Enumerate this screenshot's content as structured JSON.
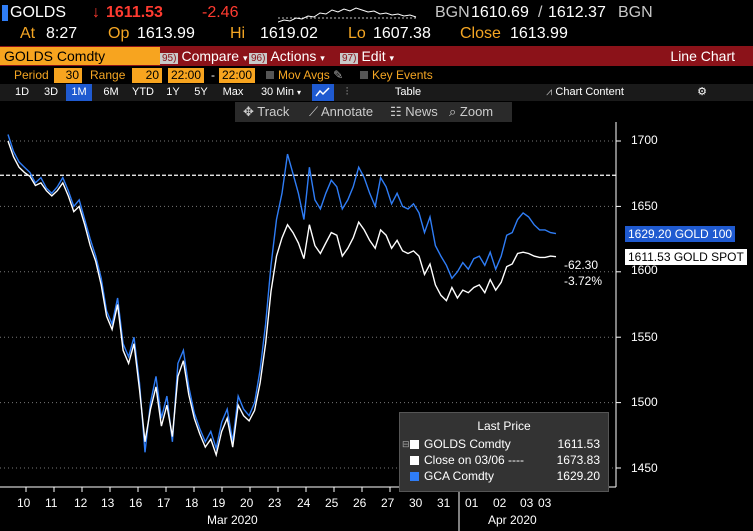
{
  "header": {
    "ticker": "GOLDS",
    "arrow": "↓",
    "last": "1611.53",
    "change": "-2.46",
    "source": "BGN",
    "bid": "1610.69",
    "slash": "/",
    "ask": "1612.37",
    "source2": "BGN",
    "at_label": "At",
    "time": "8:27",
    "op_label": "Op",
    "open": "1613.99",
    "hi_label": "Hi",
    "high": "1619.02",
    "lo_label": "Lo",
    "low": "1607.38",
    "close_label": "Close",
    "close": "1613.99"
  },
  "toolbar": {
    "security": "GOLDS Comdty",
    "compare_num": "95)",
    "compare": "Compare",
    "actions_num": "96)",
    "actions": "Actions",
    "edit_num": "97)",
    "edit": "Edit",
    "caret": "▾",
    "chart_type": "Line Chart"
  },
  "settings": {
    "period_label": "Period",
    "period_value": "30",
    "range_label": "Range",
    "range_value": "20",
    "start_time": "22:00",
    "dash": "-",
    "end_time": "22:00",
    "mov_avgs": "Mov Avgs",
    "key_events": "Key Events"
  },
  "range_buttons": [
    "1D",
    "3D",
    "1M",
    "6M",
    "YTD",
    "1Y",
    "5Y",
    "Max"
  ],
  "active_range": "1M",
  "interval": "30 Min",
  "interval_caret": "▾",
  "table_label": "Table",
  "chart_content": "Chart Content",
  "tools": {
    "track": "Track",
    "annotate": "Annotate",
    "news": "News",
    "zoom": "Zoom"
  },
  "colors": {
    "accent_orange": "#f7a41f",
    "toolbar_red": "#8b1219",
    "series_blue": "#2f7df6",
    "series_white": "#ffffff",
    "negative_red": "#ff3b30",
    "active_button": "#1f5ad0"
  },
  "price_tags": {
    "gca": "1629.20 GOLD 100",
    "golds": "1611.53 GOLD SPOT",
    "change_abs": "-62.30",
    "change_pct": "-3.72%"
  },
  "legend": {
    "title": "Last Price",
    "rows": [
      {
        "label": "GOLDS Comdty",
        "value": "1611.53",
        "color": "#ffffff"
      },
      {
        "label": "Close on 03/06 ---- ",
        "value": "1673.83",
        "color": "#ffffff"
      },
      {
        "label": "GCA Comdty",
        "value": "1629.20",
        "color": "#2f7df6"
      }
    ]
  },
  "chart_data": {
    "type": "line",
    "ylim": [
      1435,
      1720
    ],
    "y_ticks": [
      1450,
      1500,
      1550,
      1600,
      1650,
      1700
    ],
    "x_tick_labels": [
      "10",
      "11",
      "12",
      "13",
      "16",
      "17",
      "18",
      "19",
      "20",
      "23",
      "24",
      "25",
      "26",
      "27",
      "30",
      "31",
      "01",
      "02",
      "03",
      "03"
    ],
    "x_group_labels": [
      "Mar 2020",
      "Apr 2020"
    ],
    "reference_line": {
      "name": "Close on 03/06",
      "value": 1673.83
    },
    "series": [
      {
        "name": "GCA Comdty",
        "color": "#2f7df6",
        "x": [
          0,
          2,
          4,
          6,
          8,
          10,
          12,
          14,
          16,
          18,
          20,
          22,
          24,
          26,
          28,
          30,
          32,
          34,
          36,
          38,
          40,
          42,
          44,
          46,
          48,
          50,
          52,
          54,
          56,
          58,
          60,
          62,
          64,
          66,
          68,
          70,
          72,
          74,
          76,
          78,
          80,
          82,
          84,
          86,
          88,
          90,
          92,
          94,
          96,
          98,
          100,
          102,
          104,
          106,
          108,
          110,
          112,
          114,
          116,
          118,
          120,
          122,
          124,
          126,
          128,
          130,
          132,
          134,
          136,
          138,
          140,
          142,
          144,
          146,
          148,
          150,
          152,
          154,
          156,
          158,
          160,
          162,
          164,
          166,
          168,
          170,
          172,
          174,
          176,
          178,
          180,
          182,
          184,
          186,
          188,
          190,
          192,
          194,
          196,
          198,
          200
        ],
        "y": [
          1705,
          1692,
          1684,
          1680,
          1676,
          1668,
          1672,
          1664,
          1660,
          1665,
          1672,
          1662,
          1650,
          1655,
          1640,
          1625,
          1612,
          1595,
          1570,
          1560,
          1580,
          1545,
          1535,
          1550,
          1515,
          1462,
          1500,
          1520,
          1488,
          1505,
          1470,
          1530,
          1540,
          1512,
          1492,
          1480,
          1470,
          1478,
          1465,
          1485,
          1495,
          1470,
          1505,
          1495,
          1490,
          1500,
          1525,
          1560,
          1605,
          1640,
          1660,
          1690,
          1675,
          1660,
          1640,
          1680,
          1655,
          1648,
          1660,
          1670,
          1665,
          1648,
          1655,
          1665,
          1680,
          1672,
          1660,
          1650,
          1672,
          1665,
          1652,
          1660,
          1650,
          1648,
          1652,
          1645,
          1630,
          1642,
          1620,
          1612,
          1605,
          1595,
          1600,
          1607,
          1602,
          1610,
          1612,
          1605,
          1615,
          1602,
          1612,
          1628,
          1630,
          1640,
          1645,
          1642,
          1636,
          1632,
          1632,
          1630,
          1629.2
        ]
      },
      {
        "name": "GOLDS Comdty",
        "color": "#ffffff",
        "x": [
          0,
          2,
          4,
          6,
          8,
          10,
          12,
          14,
          16,
          18,
          20,
          22,
          24,
          26,
          28,
          30,
          32,
          34,
          36,
          38,
          40,
          42,
          44,
          46,
          48,
          50,
          52,
          54,
          56,
          58,
          60,
          62,
          64,
          66,
          68,
          70,
          72,
          74,
          76,
          78,
          80,
          82,
          84,
          86,
          88,
          90,
          92,
          94,
          96,
          98,
          100,
          102,
          104,
          106,
          108,
          110,
          112,
          114,
          116,
          118,
          120,
          122,
          124,
          126,
          128,
          130,
          132,
          134,
          136,
          138,
          140,
          142,
          144,
          146,
          148,
          150,
          152,
          154,
          156,
          158,
          160,
          162,
          164,
          166,
          168,
          170,
          172,
          174,
          176,
          178,
          180,
          182,
          184,
          186,
          188,
          190,
          192,
          194,
          196,
          198,
          200
        ],
        "y": [
          1700,
          1688,
          1680,
          1676,
          1673,
          1666,
          1668,
          1662,
          1658,
          1662,
          1668,
          1658,
          1646,
          1650,
          1636,
          1620,
          1608,
          1590,
          1566,
          1556,
          1575,
          1540,
          1530,
          1545,
          1510,
          1470,
          1495,
          1512,
          1482,
          1498,
          1474,
          1520,
          1532,
          1506,
          1488,
          1476,
          1466,
          1472,
          1460,
          1478,
          1488,
          1466,
          1498,
          1490,
          1486,
          1494,
          1515,
          1545,
          1585,
          1612,
          1626,
          1636,
          1630,
          1622,
          1610,
          1636,
          1620,
          1614,
          1622,
          1630,
          1628,
          1612,
          1618,
          1626,
          1638,
          1632,
          1624,
          1618,
          1632,
          1628,
          1618,
          1624,
          1616,
          1614,
          1616,
          1612,
          1598,
          1606,
          1590,
          1582,
          1578,
          1588,
          1580,
          1586,
          1584,
          1588,
          1590,
          1584,
          1594,
          1586,
          1592,
          1604,
          1606,
          1614,
          1615,
          1614,
          1612,
          1611,
          1611,
          1612,
          1611.53
        ]
      }
    ]
  }
}
